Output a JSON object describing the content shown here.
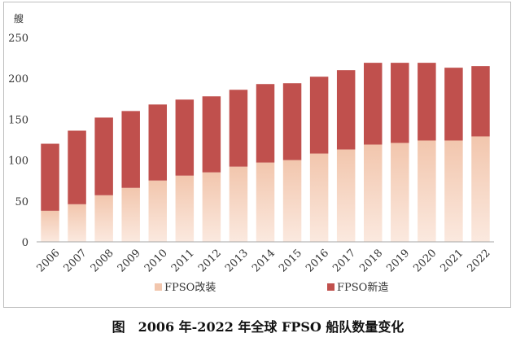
{
  "chart_data": {
    "type": "bar",
    "stacked": true,
    "unit": "艘",
    "categories": [
      "2006",
      "2007",
      "2008",
      "2009",
      "2010",
      "2011",
      "2012",
      "2013",
      "2014",
      "2015",
      "2016",
      "2017",
      "2018",
      "2019",
      "2020",
      "2021",
      "2022"
    ],
    "series": [
      {
        "name": "FPSO改装",
        "color": "#f2c6ad",
        "values": [
          38,
          46,
          57,
          66,
          75,
          81,
          85,
          92,
          97,
          100,
          108,
          113,
          119,
          121,
          124,
          124,
          129
        ]
      },
      {
        "name": "FPSO新造",
        "color": "#c0504d",
        "values": [
          82,
          90,
          95,
          94,
          93,
          93,
          93,
          94,
          96,
          94,
          94,
          97,
          100,
          98,
          95,
          89,
          86
        ]
      }
    ],
    "ylim": [
      0,
      250
    ],
    "yticks": [
      0,
      50,
      100,
      150,
      200,
      250
    ],
    "grid": false,
    "legend": "bottom"
  },
  "caption": "图　2006 年-2022 年全球 FPSO 船队数量变化"
}
